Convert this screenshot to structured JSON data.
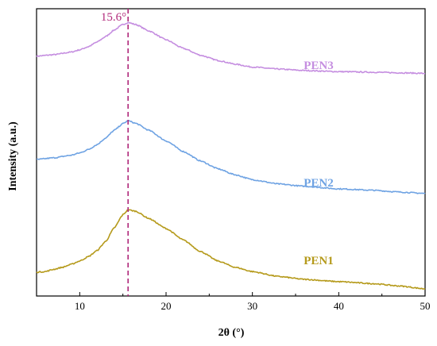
{
  "chart_data": {
    "type": "line",
    "title": "",
    "xlabel": "2θ (°)",
    "ylabel": "Intensity  (a.u.)",
    "xlim": [
      5,
      50
    ],
    "ylim": [
      0,
      1
    ],
    "x_ticks": [
      "10",
      "20",
      "30",
      "40",
      "50"
    ],
    "y_ticks_visible": false,
    "grid": false,
    "legend": "inline-right",
    "annotation": {
      "label": "15.6°",
      "x": 15.6,
      "color": "#b0287a",
      "style": "dashed"
    },
    "series": [
      {
        "name": "PEN3",
        "color": "#c58ee0",
        "x": [
          5,
          7,
          9,
          10,
          11,
          12,
          13,
          14,
          15,
          15.6,
          16.5,
          18,
          20,
          22,
          24,
          26,
          28,
          30,
          33,
          36,
          40,
          44,
          47,
          50
        ],
        "y": [
          0.835,
          0.84,
          0.849,
          0.857,
          0.868,
          0.884,
          0.903,
          0.926,
          0.945,
          0.952,
          0.945,
          0.923,
          0.892,
          0.862,
          0.838,
          0.82,
          0.807,
          0.797,
          0.79,
          0.785,
          0.781,
          0.779,
          0.777,
          0.775
        ]
      },
      {
        "name": "PEN2",
        "color": "#6fa3e3",
        "x": [
          5,
          7,
          9,
          10,
          11,
          12,
          13,
          14,
          15,
          15.6,
          16.5,
          18,
          20,
          22,
          24,
          26,
          28,
          30,
          33,
          36,
          40,
          44,
          47,
          50
        ],
        "y": [
          0.475,
          0.481,
          0.49,
          0.498,
          0.51,
          0.527,
          0.55,
          0.577,
          0.6,
          0.61,
          0.601,
          0.577,
          0.54,
          0.503,
          0.47,
          0.443,
          0.422,
          0.405,
          0.39,
          0.382,
          0.373,
          0.368,
          0.362,
          0.357
        ]
      },
      {
        "name": "PEN1",
        "color": "#b59a1b",
        "x": [
          5,
          6,
          7,
          8,
          9,
          10,
          11,
          12,
          13,
          14,
          15,
          15.6,
          16.5,
          18,
          20,
          22,
          24,
          26,
          28,
          30,
          33,
          36,
          40,
          44,
          47,
          50
        ],
        "y": [
          0.083,
          0.085,
          0.093,
          0.1,
          0.11,
          0.122,
          0.137,
          0.158,
          0.19,
          0.237,
          0.283,
          0.3,
          0.295,
          0.27,
          0.235,
          0.195,
          0.155,
          0.122,
          0.1,
          0.085,
          0.068,
          0.058,
          0.05,
          0.043,
          0.035,
          0.025
        ]
      }
    ]
  }
}
